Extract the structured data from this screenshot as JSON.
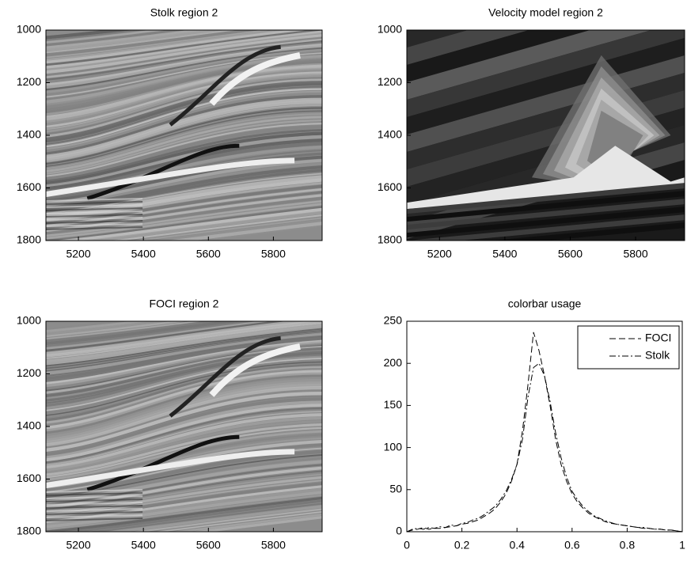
{
  "chart_data": [
    {
      "type": "image",
      "title": "Stolk region 2",
      "xlim": [
        5100,
        5950
      ],
      "ylim": [
        1800,
        1000
      ],
      "xticks": [
        5200,
        5400,
        5600,
        5800
      ],
      "yticks": [
        1000,
        1200,
        1400,
        1600,
        1800
      ]
    },
    {
      "type": "image",
      "title": "Velocity model region 2",
      "xlim": [
        5100,
        5950
      ],
      "ylim": [
        1800,
        1000
      ],
      "xticks": [
        5200,
        5400,
        5600,
        5800
      ],
      "yticks": [
        1000,
        1200,
        1400,
        1600,
        1800
      ]
    },
    {
      "type": "image",
      "title": "FOCI region 2",
      "xlim": [
        5100,
        5950
      ],
      "ylim": [
        1800,
        1000
      ],
      "xticks": [
        5200,
        5400,
        5600,
        5800
      ],
      "yticks": [
        1000,
        1200,
        1400,
        1600,
        1800
      ]
    },
    {
      "type": "line",
      "title": "colorbar usage",
      "xlim": [
        0,
        1
      ],
      "ylim": [
        0,
        250
      ],
      "xticks": [
        0,
        0.2,
        0.4,
        0.6,
        0.8,
        1
      ],
      "yticks": [
        0,
        50,
        100,
        150,
        200,
        250
      ],
      "legend": "upper right",
      "x": [
        0,
        0.02,
        0.04,
        0.06,
        0.08,
        0.1,
        0.12,
        0.14,
        0.16,
        0.18,
        0.2,
        0.22,
        0.24,
        0.26,
        0.28,
        0.3,
        0.32,
        0.34,
        0.36,
        0.38,
        0.4,
        0.42,
        0.44,
        0.46,
        0.48,
        0.5,
        0.52,
        0.54,
        0.56,
        0.58,
        0.6,
        0.62,
        0.64,
        0.66,
        0.68,
        0.7,
        0.72,
        0.74,
        0.76,
        0.78,
        0.8,
        0.82,
        0.84,
        0.86,
        0.88,
        0.9,
        0.92,
        0.94,
        0.96,
        0.98,
        1
      ],
      "series": [
        {
          "name": "FOCI",
          "color": "#000000",
          "linestyle": "--",
          "values": [
            0,
            2,
            3,
            5,
            3,
            4,
            4,
            5,
            6,
            7,
            9,
            10,
            12,
            14,
            18,
            22,
            27,
            35,
            45,
            60,
            80,
            120,
            175,
            237,
            215,
            185,
            150,
            110,
            80,
            60,
            45,
            35,
            28,
            22,
            18,
            15,
            12,
            10,
            9,
            8,
            7,
            6,
            5,
            4,
            4,
            3,
            3,
            2,
            2,
            1,
            0
          ]
        },
        {
          "name": "Stolk",
          "color": "#000000",
          "linestyle": "-.",
          "values": [
            0,
            3,
            4,
            3,
            5,
            4,
            6,
            5,
            8,
            7,
            10,
            11,
            14,
            16,
            20,
            25,
            30,
            38,
            48,
            62,
            80,
            110,
            160,
            195,
            200,
            185,
            155,
            118,
            88,
            65,
            48,
            38,
            30,
            24,
            19,
            16,
            13,
            11,
            9,
            8,
            7,
            6,
            5,
            5,
            4,
            3,
            3,
            2,
            2,
            1,
            0
          ]
        }
      ]
    }
  ]
}
